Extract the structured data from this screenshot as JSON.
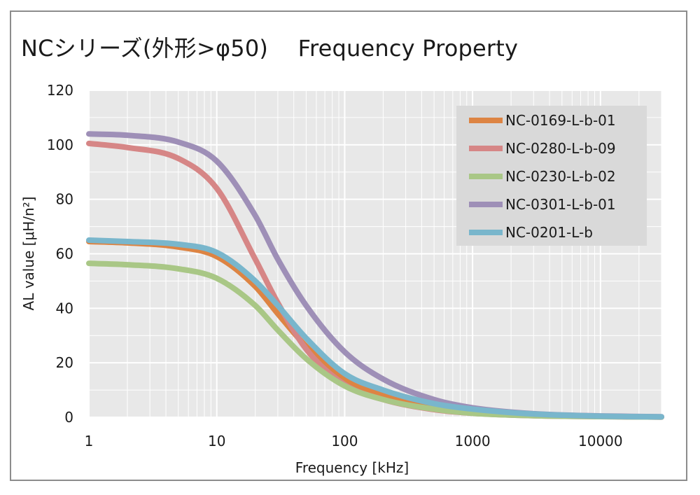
{
  "chart_data": {
    "type": "line",
    "title": "NCシリーズ(外形>φ50)　 Frequency Property",
    "xlabel": "Frequency [kHz]",
    "ylabel": "AL value [μH/n²]",
    "x_scale": "log",
    "xlim": [
      1,
      30000
    ],
    "ylim": [
      0,
      120
    ],
    "x_ticks": [
      "1",
      "10",
      "100",
      "1000",
      "10000"
    ],
    "y_ticks": [
      "0",
      "20",
      "40",
      "60",
      "80",
      "100",
      "120"
    ],
    "grid": true,
    "legend_position": "top-right",
    "x": [
      1,
      2,
      5,
      10,
      20,
      30,
      50,
      100,
      200,
      500,
      1000,
      3000,
      10000,
      30000
    ],
    "series": [
      {
        "name": "NC-0169-L-b-01",
        "color": "#dd8443",
        "values": [
          64.5,
          64.0,
          62.5,
          59.0,
          48.0,
          38.0,
          26.0,
          14.0,
          8.0,
          3.5,
          1.8,
          0.8,
          0.3,
          0.1
        ]
      },
      {
        "name": "NC-0280-L-b-09",
        "color": "#d68686",
        "values": [
          100.5,
          99.0,
          95.0,
          84.0,
          58.0,
          42.0,
          25.0,
          12.0,
          6.5,
          2.8,
          1.5,
          0.6,
          0.25,
          0.1
        ]
      },
      {
        "name": "NC-0230-L-b-02",
        "color": "#a9c786",
        "values": [
          56.5,
          56.0,
          54.5,
          51.0,
          41.0,
          32.0,
          21.5,
          11.5,
          6.5,
          3.0,
          1.5,
          0.6,
          0.25,
          0.1
        ]
      },
      {
        "name": "NC-0301-L-b-01",
        "color": "#9e8fb7",
        "values": [
          104.0,
          103.5,
          101.0,
          94.0,
          74.0,
          58.0,
          41.0,
          24.0,
          14.0,
          6.5,
          3.5,
          1.3,
          0.5,
          0.2
        ]
      },
      {
        "name": "NC-0201-L-b",
        "color": "#79b6cc",
        "values": [
          65.0,
          64.5,
          63.5,
          60.5,
          50.0,
          41.0,
          29.0,
          16.0,
          10.0,
          5.0,
          3.0,
          1.2,
          0.4,
          0.15
        ]
      }
    ]
  },
  "colors": {
    "plot_background": "#e8e8e8",
    "grid": "#ffffff",
    "legend_background": "#d9d9d9",
    "frame": "#8c8c8c"
  }
}
